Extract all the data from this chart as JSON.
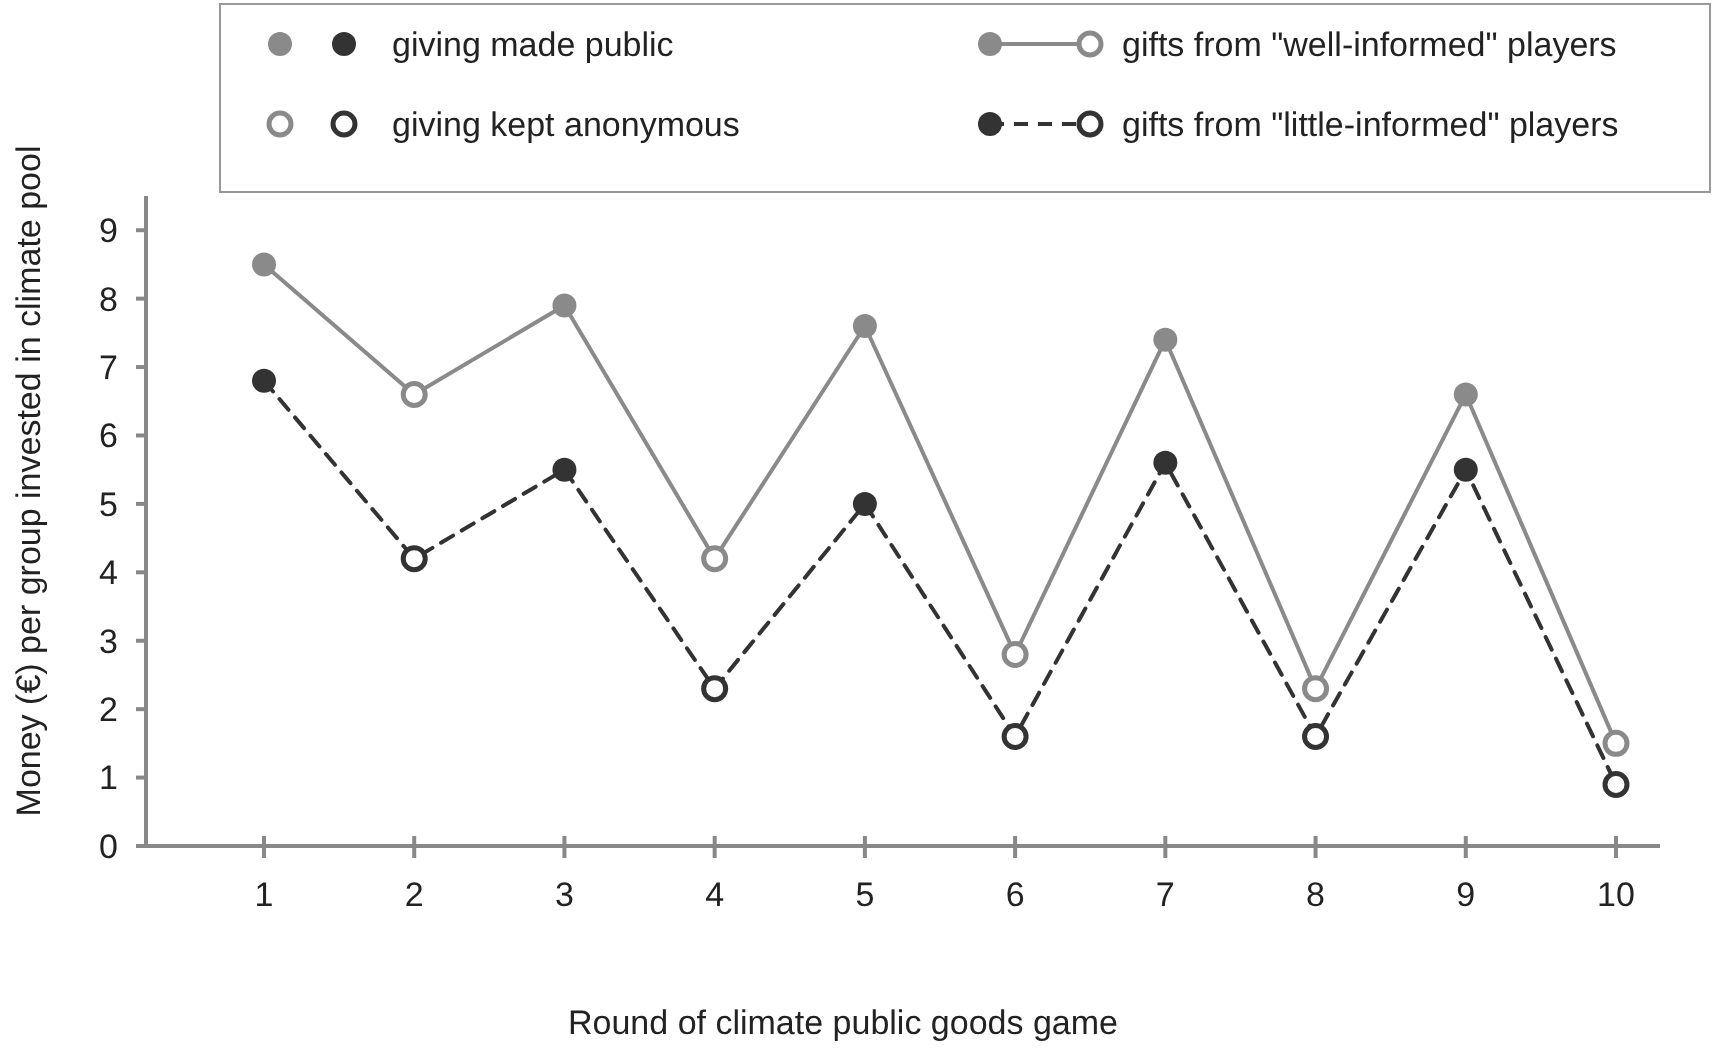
{
  "chart_data": {
    "type": "line",
    "xlabel": "Round of climate public goods game",
    "ylabel": "Money (€) per group invested in climate pool",
    "categories": [
      "1",
      "2",
      "3",
      "4",
      "5",
      "6",
      "7",
      "8",
      "9",
      "10"
    ],
    "ylim": [
      0,
      9.5
    ],
    "yticks": [
      0,
      1,
      2,
      3,
      4,
      5,
      6,
      7,
      8,
      9
    ],
    "grid": false,
    "legend": "top",
    "series": [
      {
        "type": "scatter",
        "name": "giving made public",
        "marker": "circle",
        "x": [
          "1",
          "3",
          "5",
          "7",
          "9",
          "1",
          "3",
          "5",
          "7",
          "9"
        ],
        "values": [
          8.5,
          7.9,
          7.6,
          7.4,
          6.6,
          6.8,
          5.5,
          5.0,
          5.6,
          5.5
        ],
        "colors": [
          "#8a8a8a",
          "#8a8a8a",
          "#8a8a8a",
          "#8a8a8a",
          "#8a8a8a",
          "#333333",
          "#333333",
          "#333333",
          "#333333",
          "#333333"
        ]
      },
      {
        "type": "scatter",
        "name": "giving kept anonymous",
        "marker": "circle",
        "color": "#ffffff",
        "x": [
          "2",
          "4",
          "6",
          "8",
          "10",
          "2",
          "4",
          "6",
          "8",
          "10"
        ],
        "values": [
          6.6,
          4.2,
          2.8,
          2.3,
          1.5,
          4.2,
          2.3,
          1.6,
          1.6,
          0.9
        ],
        "colors": [
          "#8a8a8a",
          "#8a8a8a",
          "#8a8a8a",
          "#8a8a8a",
          "#8a8a8a",
          "#333333",
          "#333333",
          "#333333",
          "#333333",
          "#333333"
        ]
      },
      {
        "name": "gifts from \"well-informed\" players",
        "color": "#8a8a8a",
        "line_style": "solid",
        "values": [
          8.5,
          6.6,
          7.9,
          4.2,
          7.6,
          2.8,
          7.4,
          2.3,
          6.6,
          1.5
        ]
      },
      {
        "name": "gifts from \"little-informed\" players",
        "color": "#333333",
        "line_style": "dashed",
        "values": [
          6.8,
          4.2,
          5.5,
          2.3,
          5.0,
          1.6,
          5.6,
          1.6,
          5.5,
          0.9
        ]
      }
    ]
  }
}
